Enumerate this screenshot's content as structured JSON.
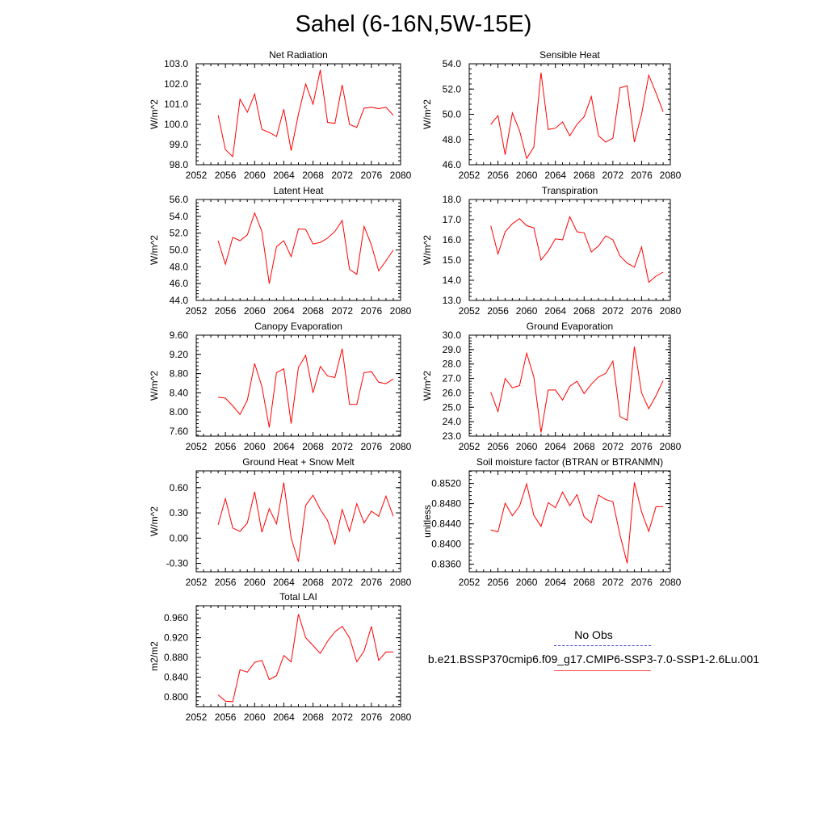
{
  "title": "Sahel (6-16N,5W-15E)",
  "legend": {
    "obs_label": "No Obs",
    "run_label": "b.e21.BSSP370cmip6.f09_g17.CMIP6-SSP3-7.0-SSP1-2.6Lu.001",
    "obs_color": "#3b3bc9",
    "run_color": "#ff0000"
  },
  "chart_data": [
    {
      "type": "line",
      "title": "Net Radiation",
      "ylabel": "W/m^2",
      "xlim": [
        2052,
        2080
      ],
      "x_ticks": [
        2052,
        2056,
        2060,
        2064,
        2068,
        2072,
        2076,
        2080
      ],
      "ylim": [
        98.0,
        103.0
      ],
      "y_ticks": [
        "98.0",
        "99.0",
        "100.0",
        "101.0",
        "102.0",
        "103.0"
      ],
      "x": [
        2055,
        2056,
        2057,
        2058,
        2059,
        2060,
        2061,
        2062,
        2063,
        2064,
        2065,
        2066,
        2067,
        2068,
        2069,
        2070,
        2071,
        2072,
        2073,
        2074,
        2075,
        2076,
        2077,
        2078,
        2079
      ],
      "series": [
        {
          "values": [
            100.45,
            98.75,
            98.4,
            101.25,
            100.6,
            101.5,
            99.75,
            99.6,
            99.4,
            100.75,
            98.7,
            100.5,
            102.0,
            101.0,
            102.7,
            100.1,
            100.05,
            101.95,
            100.0,
            99.85,
            100.8,
            100.85,
            100.78,
            100.85,
            100.45
          ]
        }
      ]
    },
    {
      "type": "line",
      "title": "Sensible Heat",
      "ylabel": "W/m^2",
      "xlim": [
        2052,
        2080
      ],
      "x_ticks": [
        2052,
        2056,
        2060,
        2064,
        2068,
        2072,
        2076,
        2080
      ],
      "ylim": [
        46.0,
        54.0
      ],
      "y_ticks": [
        "46.0",
        "48.0",
        "50.0",
        "52.0",
        "54.0"
      ],
      "x": [
        2055,
        2056,
        2057,
        2058,
        2059,
        2060,
        2061,
        2062,
        2063,
        2064,
        2065,
        2066,
        2067,
        2068,
        2069,
        2070,
        2071,
        2072,
        2073,
        2074,
        2075,
        2076,
        2077,
        2078,
        2079
      ],
      "series": [
        {
          "values": [
            49.2,
            49.9,
            46.8,
            50.1,
            48.7,
            46.5,
            47.4,
            53.3,
            48.8,
            48.9,
            49.4,
            48.3,
            49.2,
            49.8,
            51.4,
            48.3,
            47.8,
            48.1,
            52.1,
            52.25,
            47.8,
            50.0,
            53.1,
            51.7,
            50.2
          ]
        }
      ]
    },
    {
      "type": "line",
      "title": "Latent Heat",
      "ylabel": "W/m^2",
      "xlim": [
        2052,
        2080
      ],
      "x_ticks": [
        2052,
        2056,
        2060,
        2064,
        2068,
        2072,
        2076,
        2080
      ],
      "ylim": [
        44.0,
        56.0
      ],
      "y_ticks": [
        "44.0",
        "46.0",
        "48.0",
        "50.0",
        "52.0",
        "54.0",
        "56.0"
      ],
      "x": [
        2055,
        2056,
        2057,
        2058,
        2059,
        2060,
        2061,
        2062,
        2063,
        2064,
        2065,
        2066,
        2067,
        2068,
        2069,
        2070,
        2071,
        2072,
        2073,
        2074,
        2075,
        2076,
        2077,
        2078,
        2079
      ],
      "series": [
        {
          "values": [
            51.1,
            48.3,
            51.5,
            51.1,
            51.8,
            54.4,
            52.2,
            46.0,
            50.4,
            51.1,
            49.2,
            52.5,
            52.45,
            50.7,
            50.9,
            51.4,
            52.2,
            53.5,
            47.7,
            47.1,
            52.8,
            50.6,
            47.5,
            48.7,
            50.0
          ]
        }
      ]
    },
    {
      "type": "line",
      "title": "Transpiration",
      "ylabel": "W/m^2",
      "xlim": [
        2052,
        2080
      ],
      "x_ticks": [
        2052,
        2056,
        2060,
        2064,
        2068,
        2072,
        2076,
        2080
      ],
      "ylim": [
        13.0,
        18.0
      ],
      "y_ticks": [
        "13.0",
        "14.0",
        "15.0",
        "16.0",
        "17.0",
        "18.0"
      ],
      "x": [
        2055,
        2056,
        2057,
        2058,
        2059,
        2060,
        2061,
        2062,
        2063,
        2064,
        2065,
        2066,
        2067,
        2068,
        2069,
        2070,
        2071,
        2072,
        2073,
        2074,
        2075,
        2076,
        2077,
        2078,
        2079
      ],
      "series": [
        {
          "values": [
            16.7,
            15.3,
            16.4,
            16.8,
            17.05,
            16.7,
            16.6,
            15.0,
            15.45,
            16.05,
            16.0,
            17.15,
            16.4,
            16.35,
            15.4,
            15.7,
            16.2,
            16.0,
            15.2,
            14.85,
            14.65,
            15.65,
            13.9,
            14.2,
            14.4
          ]
        }
      ]
    },
    {
      "type": "line",
      "title": "Canopy Evaporation",
      "ylabel": "W/m^2",
      "xlim": [
        2052,
        2080
      ],
      "x_ticks": [
        2052,
        2056,
        2060,
        2064,
        2068,
        2072,
        2076,
        2080
      ],
      "ylim": [
        7.5,
        9.6
      ],
      "y_ticks": [
        "7.60",
        "8.00",
        "8.40",
        "8.80",
        "9.20",
        "9.60"
      ],
      "x": [
        2055,
        2056,
        2057,
        2058,
        2059,
        2060,
        2061,
        2062,
        2063,
        2064,
        2065,
        2066,
        2067,
        2068,
        2069,
        2070,
        2071,
        2072,
        2073,
        2074,
        2075,
        2076,
        2077,
        2078,
        2079
      ],
      "series": [
        {
          "values": [
            8.31,
            8.29,
            8.13,
            7.95,
            8.25,
            9.01,
            8.53,
            7.68,
            8.82,
            8.9,
            7.76,
            8.93,
            9.18,
            8.4,
            8.95,
            8.75,
            8.72,
            9.32,
            8.16,
            8.16,
            8.82,
            8.84,
            8.62,
            8.59,
            8.69
          ]
        }
      ]
    },
    {
      "type": "line",
      "title": "Ground Evaporation",
      "ylabel": "W/m^2",
      "xlim": [
        2052,
        2080
      ],
      "x_ticks": [
        2052,
        2056,
        2060,
        2064,
        2068,
        2072,
        2076,
        2080
      ],
      "ylim": [
        23.0,
        30.0
      ],
      "y_ticks": [
        "23.0",
        "24.0",
        "25.0",
        "26.0",
        "27.0",
        "28.0",
        "29.0",
        "30.0"
      ],
      "x": [
        2055,
        2056,
        2057,
        2058,
        2059,
        2060,
        2061,
        2062,
        2063,
        2064,
        2065,
        2066,
        2067,
        2068,
        2069,
        2070,
        2071,
        2072,
        2073,
        2074,
        2075,
        2076,
        2077,
        2078,
        2079
      ],
      "series": [
        {
          "values": [
            26.05,
            24.7,
            27.0,
            26.35,
            26.5,
            28.75,
            27.1,
            23.25,
            26.2,
            26.2,
            25.5,
            26.45,
            26.8,
            25.95,
            26.6,
            27.1,
            27.35,
            28.2,
            24.35,
            24.1,
            29.2,
            26.0,
            24.9,
            25.8,
            26.85
          ]
        }
      ]
    },
    {
      "type": "line",
      "title": "Ground Heat + Snow Melt",
      "ylabel": "W/m^2",
      "xlim": [
        2052,
        2080
      ],
      "x_ticks": [
        2052,
        2056,
        2060,
        2064,
        2068,
        2072,
        2076,
        2080
      ],
      "ylim": [
        -0.4,
        0.8
      ],
      "y_ticks": [
        "-0.30",
        "0.00",
        "0.30",
        "0.60"
      ],
      "x": [
        2055,
        2056,
        2057,
        2058,
        2059,
        2060,
        2061,
        2062,
        2063,
        2064,
        2065,
        2066,
        2067,
        2068,
        2069,
        2070,
        2071,
        2072,
        2073,
        2074,
        2075,
        2076,
        2077,
        2078,
        2079
      ],
      "series": [
        {
          "values": [
            0.16,
            0.47,
            0.12,
            0.08,
            0.18,
            0.55,
            0.07,
            0.35,
            0.17,
            0.66,
            0.0,
            -0.28,
            0.39,
            0.51,
            0.34,
            0.21,
            -0.07,
            0.34,
            0.08,
            0.41,
            0.18,
            0.32,
            0.26,
            0.5,
            0.26
          ]
        }
      ]
    },
    {
      "type": "line",
      "title": "Soil moisture factor (BTRAN or BTRANMN)",
      "ylabel": "unitless",
      "xlim": [
        2052,
        2080
      ],
      "x_ticks": [
        2052,
        2056,
        2060,
        2064,
        2068,
        2072,
        2076,
        2080
      ],
      "ylim": [
        0.8345,
        0.8545
      ],
      "y_ticks": [
        "0.8360",
        "0.8400",
        "0.8440",
        "0.8480",
        "0.8520"
      ],
      "x": [
        2055,
        2056,
        2057,
        2058,
        2059,
        2060,
        2061,
        2062,
        2063,
        2064,
        2065,
        2066,
        2067,
        2068,
        2069,
        2070,
        2071,
        2072,
        2073,
        2074,
        2075,
        2076,
        2077,
        2078,
        2079
      ],
      "series": [
        {
          "values": [
            0.8428,
            0.8424,
            0.8481,
            0.8456,
            0.8475,
            0.8519,
            0.8457,
            0.8435,
            0.8482,
            0.8472,
            0.8503,
            0.8476,
            0.8498,
            0.8454,
            0.8442,
            0.8497,
            0.8488,
            0.8484,
            0.8417,
            0.8362,
            0.8522,
            0.8464,
            0.8425,
            0.8474,
            0.8474
          ]
        }
      ]
    },
    {
      "type": "line",
      "title": "Total LAI",
      "ylabel": "m2/m2",
      "xlim": [
        2052,
        2080
      ],
      "x_ticks": [
        2052,
        2056,
        2060,
        2064,
        2068,
        2072,
        2076,
        2080
      ],
      "ylim": [
        0.78,
        0.985
      ],
      "y_ticks": [
        "0.800",
        "0.840",
        "0.880",
        "0.920",
        "0.960"
      ],
      "x": [
        2055,
        2056,
        2057,
        2058,
        2059,
        2060,
        2061,
        2062,
        2063,
        2064,
        2065,
        2066,
        2067,
        2068,
        2069,
        2070,
        2071,
        2072,
        2073,
        2074,
        2075,
        2076,
        2077,
        2078,
        2079
      ],
      "series": [
        {
          "values": [
            0.804,
            0.791,
            0.79,
            0.855,
            0.85,
            0.87,
            0.874,
            0.835,
            0.843,
            0.884,
            0.871,
            0.968,
            0.92,
            0.904,
            0.888,
            0.913,
            0.932,
            0.943,
            0.92,
            0.871,
            0.893,
            0.943,
            0.874,
            0.891,
            0.891
          ]
        }
      ]
    }
  ]
}
